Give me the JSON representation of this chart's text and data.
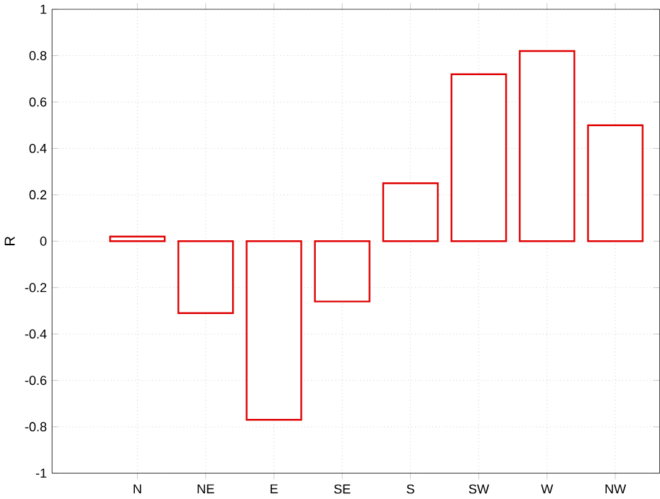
{
  "chart_data": {
    "type": "bar",
    "ylabel": "R",
    "categories": [
      "N",
      "NE",
      "E",
      "SE",
      "S",
      "SW",
      "W",
      "NW"
    ],
    "values": [
      0.02,
      -0.31,
      -0.77,
      -0.26,
      0.25,
      0.72,
      0.82,
      0.5
    ],
    "color": "#e00000",
    "ylim": [
      -1,
      1
    ],
    "yticks": [
      -1,
      -0.8,
      -0.6,
      -0.4,
      -0.2,
      0,
      0.2,
      0.4,
      0.6,
      0.8,
      1
    ],
    "grid": true
  }
}
